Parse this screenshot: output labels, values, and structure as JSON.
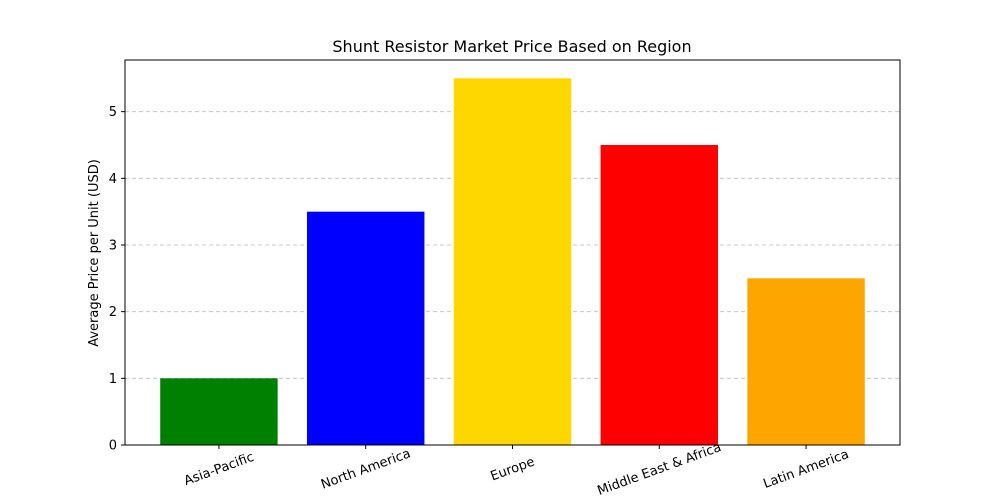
{
  "chart_data": {
    "type": "bar",
    "title": "Shunt Resistor Market Price Based on Region",
    "ylabel": "Average Price per Unit (USD)",
    "categories": [
      "Asia-Pacific",
      "North America",
      "Europe",
      "Middle East & Africa",
      "Latin America"
    ],
    "values": [
      1,
      3.5,
      5.5,
      4.5,
      2.5
    ],
    "colors": [
      "#008000",
      "#0000ff",
      "#ffd700",
      "#ff0000",
      "#ffa500"
    ],
    "ylim": [
      0,
      5.775
    ],
    "yticks": [
      0,
      1,
      2,
      3,
      4,
      5
    ],
    "grid": true
  }
}
